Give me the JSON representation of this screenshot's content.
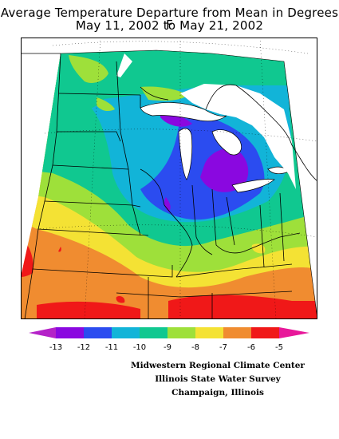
{
  "title": {
    "line1": "Average Temperature Departure from Mean in Degrees F",
    "line2": "May 11, 2002 to May 21, 2002"
  },
  "legend": {
    "labels": [
      "-13",
      "-12",
      "-11",
      "-10",
      "-9",
      "-8",
      "-7",
      "-6",
      "-5"
    ],
    "colors": [
      "#b422c8",
      "#8a08e0",
      "#2b4cf0",
      "#12b4d8",
      "#10c890",
      "#9ee03a",
      "#f4e234",
      "#f08c30",
      "#f01818",
      "#e8189a"
    ]
  },
  "map": {
    "region": "Midwestern United States and southern Ontario",
    "overlays": [
      "state-boundaries",
      "great-lakes",
      "canada-border",
      "graticule"
    ]
  },
  "credits": {
    "line1": "Midwestern Regional Climate Center",
    "line2": "Illinois State Water Survey",
    "line3": "Champaign, Illinois"
  }
}
